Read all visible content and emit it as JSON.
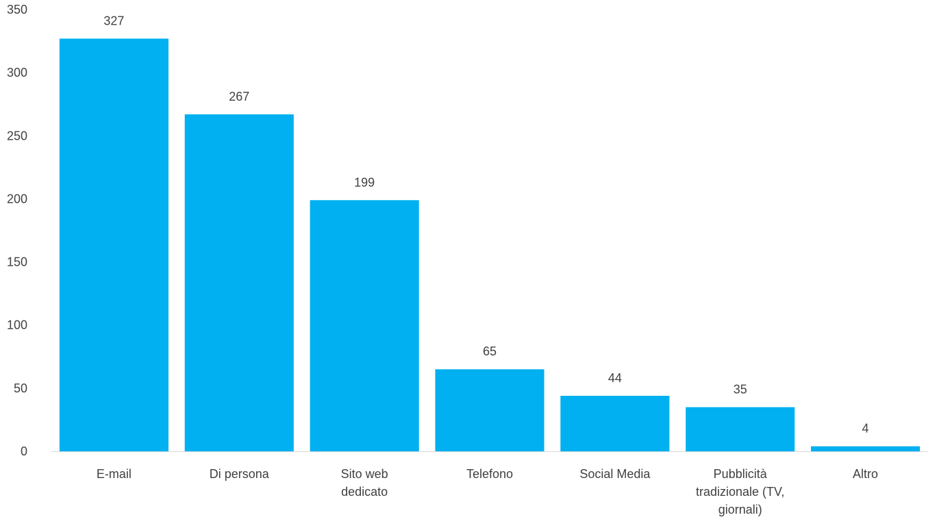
{
  "chart_data": {
    "type": "bar",
    "categories": [
      [
        "E-mail"
      ],
      [
        "Di persona"
      ],
      [
        "Sito web",
        "dedicato"
      ],
      [
        "Telefono"
      ],
      [
        "Social Media"
      ],
      [
        "Pubblicità",
        "tradizionale (TV,",
        "giornali)"
      ],
      [
        "Altro"
      ]
    ],
    "values": [
      327,
      267,
      199,
      65,
      44,
      35,
      4
    ],
    "ylim": [
      0,
      350
    ],
    "yticks": [
      0,
      50,
      100,
      150,
      200,
      250,
      300,
      350
    ],
    "grid": false,
    "legend": "none",
    "bar_color": "#00B0F0",
    "axis_color": "#D9D9D9",
    "text_color": "#404040"
  }
}
